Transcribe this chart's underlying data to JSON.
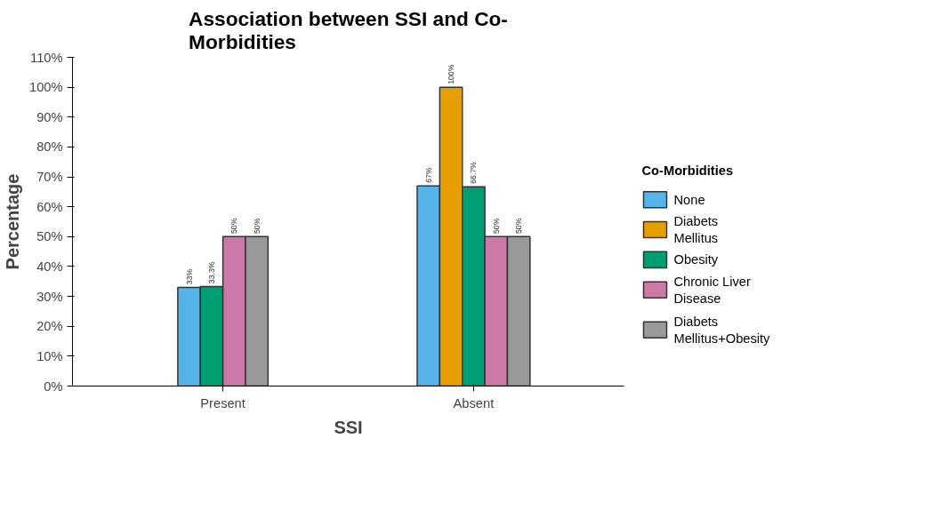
{
  "chart_data": {
    "type": "bar",
    "title": "Association between SSI and Co-\nMorbidities",
    "xlabel": "SSI",
    "ylabel": "Percentage",
    "legend_title": "Co-Morbidities",
    "categories": [
      "Present",
      "Absent"
    ],
    "series": [
      {
        "name": "None",
        "color": "#56b4e9",
        "values": [
          33,
          67
        ],
        "value_labels": [
          "33%",
          "67%"
        ]
      },
      {
        "name": "Diabets Mellitus",
        "color": "#e69f00",
        "values": [
          null,
          100
        ],
        "value_labels": [
          null,
          "100%"
        ]
      },
      {
        "name": "Obesity",
        "color": "#009e73",
        "values": [
          33.3,
          66.7
        ],
        "value_labels": [
          "33.3%",
          "66.7%"
        ]
      },
      {
        "name": "Chronic Liver Disease",
        "color": "#cc79a7",
        "values": [
          50,
          50
        ],
        "value_labels": [
          "50%",
          "50%"
        ]
      },
      {
        "name": "Diabets Mellitus+Obesity",
        "color": "#999999",
        "values": [
          50,
          50
        ],
        "value_labels": [
          "50%",
          "50%"
        ]
      }
    ],
    "ylim": [
      0,
      110
    ],
    "yticks": [
      {
        "value": 0,
        "label": "0%"
      },
      {
        "value": 10,
        "label": "10%"
      },
      {
        "value": 20,
        "label": "20%"
      },
      {
        "value": 30,
        "label": "30%"
      },
      {
        "value": 40,
        "label": "40%"
      },
      {
        "value": 50,
        "label": "50%"
      },
      {
        "value": 60,
        "label": "60%"
      },
      {
        "value": 70,
        "label": "70%"
      },
      {
        "value": 80,
        "label": "80%"
      },
      {
        "value": 90,
        "label": "90%"
      },
      {
        "value": 100,
        "label": "100%"
      },
      {
        "value": 110,
        "label": "110%"
      }
    ],
    "grid": false,
    "legend": "right"
  }
}
